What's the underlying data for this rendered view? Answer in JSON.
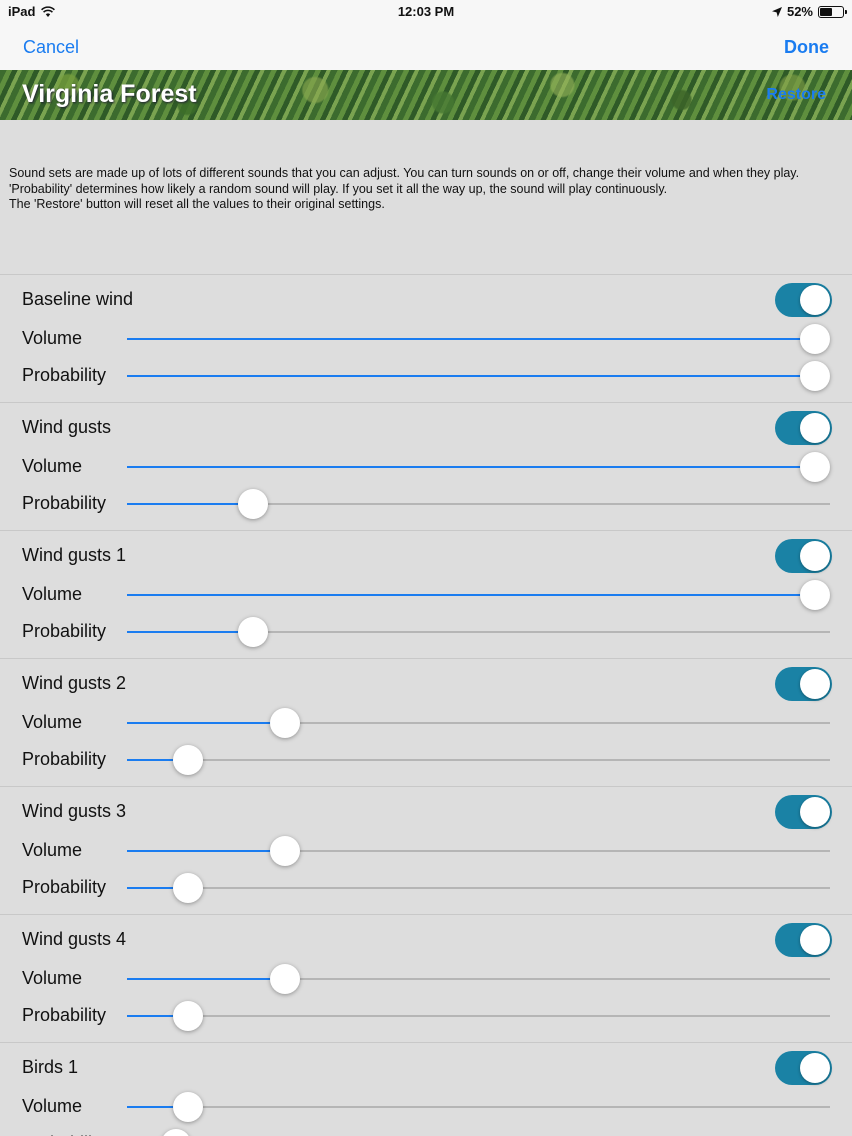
{
  "status_bar": {
    "device": "iPad",
    "time": "12:03 PM",
    "battery": "52%"
  },
  "nav": {
    "cancel": "Cancel",
    "done": "Done"
  },
  "banner": {
    "title": "Virginia Forest",
    "restore": "Restore"
  },
  "description": [
    "Sound sets are made up of lots of different sounds that you can adjust.  You can turn sounds on or off, change their volume and when they play.",
    "'Probability' determines how likely a random sound will play.  If you set it all the way up, the sound will play continuously.",
    "The 'Restore' button will reset all the values to their original settings."
  ],
  "labels": {
    "volume": "Volume",
    "probability": "Probability"
  },
  "sounds": [
    {
      "name": "Baseline wind",
      "on": true,
      "volume": 1.0,
      "probability": 1.0
    },
    {
      "name": "Wind gusts",
      "on": true,
      "volume": 1.0,
      "probability": 0.165
    },
    {
      "name": "Wind gusts 1",
      "on": true,
      "volume": 1.0,
      "probability": 0.165
    },
    {
      "name": "Wind gusts 2",
      "on": true,
      "volume": 0.212,
      "probability": 0.068
    },
    {
      "name": "Wind gusts 3",
      "on": true,
      "volume": 0.212,
      "probability": 0.068
    },
    {
      "name": "Wind gusts 4",
      "on": true,
      "volume": 0.212,
      "probability": 0.068
    },
    {
      "name": "Birds 1",
      "on": true,
      "volume": 0.068,
      "probability": 0.05
    }
  ]
}
